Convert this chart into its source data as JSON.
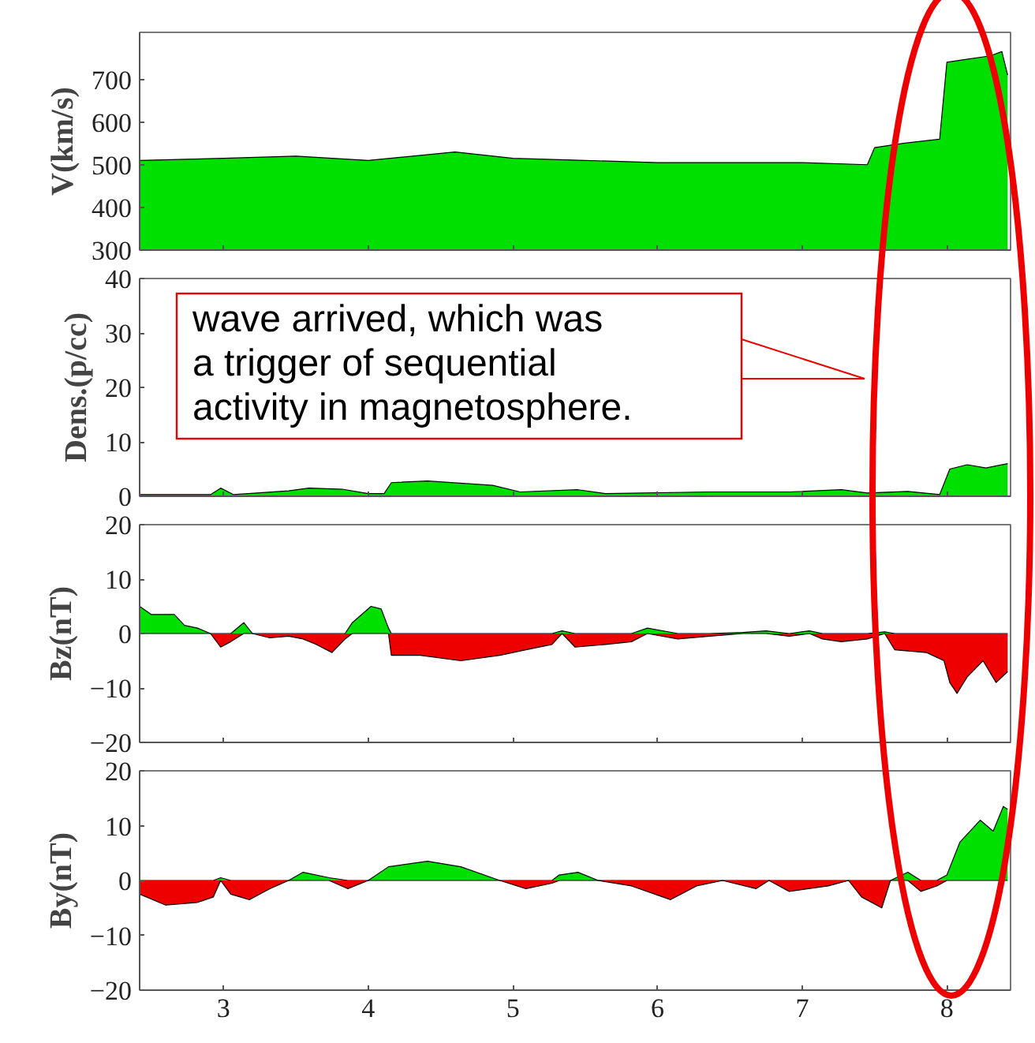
{
  "chart_data": [
    {
      "type": "area",
      "ylabel": "V(km/s)",
      "xlim": [
        2.42,
        8.44
      ],
      "xticks": [
        3,
        4,
        5,
        6,
        7,
        8
      ],
      "ylim": [
        300,
        810
      ],
      "yticks": [
        300,
        400,
        500,
        600,
        700
      ],
      "tick_labels": "y",
      "annotations": [
        "wave arrived, which was\na trigger of sequential\nactivity in magnetosphere."
      ],
      "series": [
        {
          "color": "#00e000",
          "x": [
            2.42,
            3.0,
            3.5,
            4.0,
            4.6,
            5.0,
            5.5,
            6.0,
            6.5,
            7.0,
            7.45,
            7.5,
            7.7,
            7.95,
            8.0,
            8.1,
            8.3,
            8.38,
            8.42
          ],
          "values": [
            510,
            515,
            520,
            510,
            530,
            515,
            510,
            505,
            505,
            505,
            500,
            540,
            550,
            560,
            740,
            745,
            755,
            765,
            710
          ]
        }
      ]
    },
    {
      "type": "area",
      "ylabel": "Dens.(p/cc)",
      "xlim": [
        2.42,
        8.44
      ],
      "xticks": [
        3,
        4,
        5,
        6,
        7,
        8
      ],
      "ylim": [
        0,
        40
      ],
      "yticks": [
        0,
        10,
        20,
        30,
        40
      ],
      "tick_labels": "y",
      "series": [
        {
          "color": "#00e000",
          "x": [
            2.42,
            2.91,
            2.98,
            3.07,
            3.45,
            3.59,
            3.82,
            4.0,
            4.11,
            4.16,
            4.41,
            4.86,
            5.05,
            5.45,
            5.64,
            6.36,
            6.91,
            7.27,
            7.45,
            7.73,
            7.95,
            8.02,
            8.14,
            8.27,
            8.42
          ],
          "values": [
            0.3,
            0.3,
            1.5,
            0.3,
            1,
            1.5,
            1.3,
            0.5,
            0.5,
            2.5,
            2.8,
            2,
            0.8,
            1.2,
            0.5,
            0.8,
            0.8,
            1.2,
            0.6,
            0.9,
            0.3,
            5,
            5.8,
            5.2,
            6
          ]
        }
      ]
    },
    {
      "type": "area",
      "ylabel": "Bz(nT)",
      "xlim": [
        2.42,
        8.44
      ],
      "xticks": [
        3,
        4,
        5,
        6,
        7,
        8
      ],
      "ylim": [
        -20,
        20
      ],
      "yticks": [
        -20,
        -10,
        0,
        10,
        20
      ],
      "tick_labels": "y",
      "series": [
        {
          "color": "#00e000",
          "x": [
            2.42,
            2.5,
            2.66,
            2.73,
            2.82,
            2.91,
            2.98,
            3.05,
            3.14,
            3.2,
            3.32,
            3.45,
            3.55,
            3.64,
            3.75,
            3.84,
            3.89,
            4.02,
            4.09,
            4.14,
            4.16,
            4.36,
            4.64,
            4.91,
            5.09,
            5.27,
            5.34,
            5.43,
            5.64,
            5.82,
            5.93,
            6.14,
            6.36,
            6.59,
            6.75,
            6.91,
            7.05,
            7.14,
            7.27,
            7.45,
            7.57,
            7.64,
            7.86,
            7.98,
            8.02,
            8.07,
            8.14,
            8.25,
            8.34,
            8.42
          ],
          "values": [
            5,
            3.5,
            3.5,
            1.5,
            1,
            0,
            0,
            0,
            2,
            0,
            0,
            0,
            0,
            0,
            0,
            0,
            2,
            5,
            4.5,
            1,
            0,
            0,
            0,
            0,
            0,
            0,
            0.5,
            0,
            0,
            0,
            1,
            0,
            0,
            0.2,
            0.5,
            0,
            0.5,
            0,
            0,
            0,
            0.3,
            0,
            0,
            0,
            0,
            0,
            0,
            0,
            0,
            0
          ]
        },
        {
          "color": "#ee0000",
          "x": [
            2.42,
            2.5,
            2.66,
            2.73,
            2.82,
            2.91,
            2.98,
            3.05,
            3.14,
            3.2,
            3.32,
            3.45,
            3.55,
            3.64,
            3.75,
            3.84,
            3.89,
            4.02,
            4.09,
            4.14,
            4.16,
            4.36,
            4.64,
            4.91,
            5.09,
            5.27,
            5.34,
            5.43,
            5.64,
            5.82,
            5.93,
            6.14,
            6.36,
            6.59,
            6.75,
            6.91,
            7.05,
            7.14,
            7.27,
            7.45,
            7.57,
            7.64,
            7.86,
            7.98,
            8.02,
            8.07,
            8.14,
            8.25,
            8.34,
            8.42
          ],
          "values": [
            0,
            0,
            0,
            0,
            0,
            0,
            -2.5,
            -1.5,
            0,
            0,
            -0.8,
            -0.5,
            -1,
            -2,
            -3.5,
            -1,
            0,
            0,
            0,
            0,
            -4,
            -4,
            -5,
            -4,
            -3,
            -2,
            0,
            -2.5,
            -2,
            -1.5,
            0,
            -1,
            -0.5,
            0,
            0,
            -0.5,
            0,
            -1,
            -1.5,
            -1,
            0,
            -3,
            -3.5,
            -5,
            -9,
            -11,
            -8,
            -5,
            -9,
            -7
          ]
        }
      ]
    },
    {
      "type": "area",
      "ylabel": "By(nT)",
      "xlim": [
        2.42,
        8.44
      ],
      "xticks": [
        3,
        4,
        5,
        6,
        7,
        8
      ],
      "ylim": [
        -20,
        20
      ],
      "yticks": [
        -20,
        -10,
        0,
        10,
        20
      ],
      "series": [
        {
          "color": "#00e000",
          "x": [
            2.42,
            2.6,
            2.82,
            2.93,
            2.98,
            3.05,
            3.18,
            3.32,
            3.45,
            3.55,
            3.73,
            3.86,
            4.0,
            4.14,
            4.41,
            4.64,
            4.91,
            5.09,
            5.27,
            5.32,
            5.45,
            5.59,
            5.82,
            6.09,
            6.27,
            6.45,
            6.68,
            6.77,
            6.91,
            7.18,
            7.32,
            7.41,
            7.55,
            7.61,
            7.73,
            7.82,
            7.93,
            8.0,
            8.09,
            8.23,
            8.32,
            8.39,
            8.42
          ],
          "values": [
            0,
            0,
            0,
            0,
            0.5,
            0,
            0,
            0,
            0,
            1.5,
            0.5,
            0,
            0,
            2.5,
            3.5,
            2.5,
            0,
            0,
            0,
            1,
            1.5,
            0,
            0,
            0,
            0,
            0,
            0,
            0,
            0,
            0,
            0,
            0,
            0,
            0,
            1.5,
            0,
            0,
            1,
            7,
            11,
            9,
            13.5,
            13
          ]
        },
        {
          "color": "#ee0000",
          "x": [
            2.42,
            2.6,
            2.82,
            2.93,
            2.98,
            3.05,
            3.18,
            3.32,
            3.45,
            3.55,
            3.73,
            3.86,
            4.0,
            4.14,
            4.41,
            4.64,
            4.91,
            5.09,
            5.27,
            5.32,
            5.45,
            5.59,
            5.82,
            6.09,
            6.27,
            6.45,
            6.68,
            6.77,
            6.91,
            7.18,
            7.32,
            7.41,
            7.55,
            7.61,
            7.73,
            7.82,
            7.93,
            8.0,
            8.09,
            8.23,
            8.32,
            8.39,
            8.42
          ],
          "values": [
            -2.5,
            -4.5,
            -4,
            -3,
            0,
            -2.5,
            -3.5,
            -1.5,
            0,
            0,
            0,
            -1.5,
            0,
            0,
            0,
            0,
            0,
            -1.5,
            -0.5,
            0,
            0,
            0,
            -1,
            -3.5,
            -1,
            0,
            -1.5,
            0,
            -2,
            -1,
            0,
            -3,
            -5,
            0,
            0,
            -2,
            -1,
            0,
            0,
            0,
            0,
            0,
            0
          ]
        }
      ]
    }
  ]
}
